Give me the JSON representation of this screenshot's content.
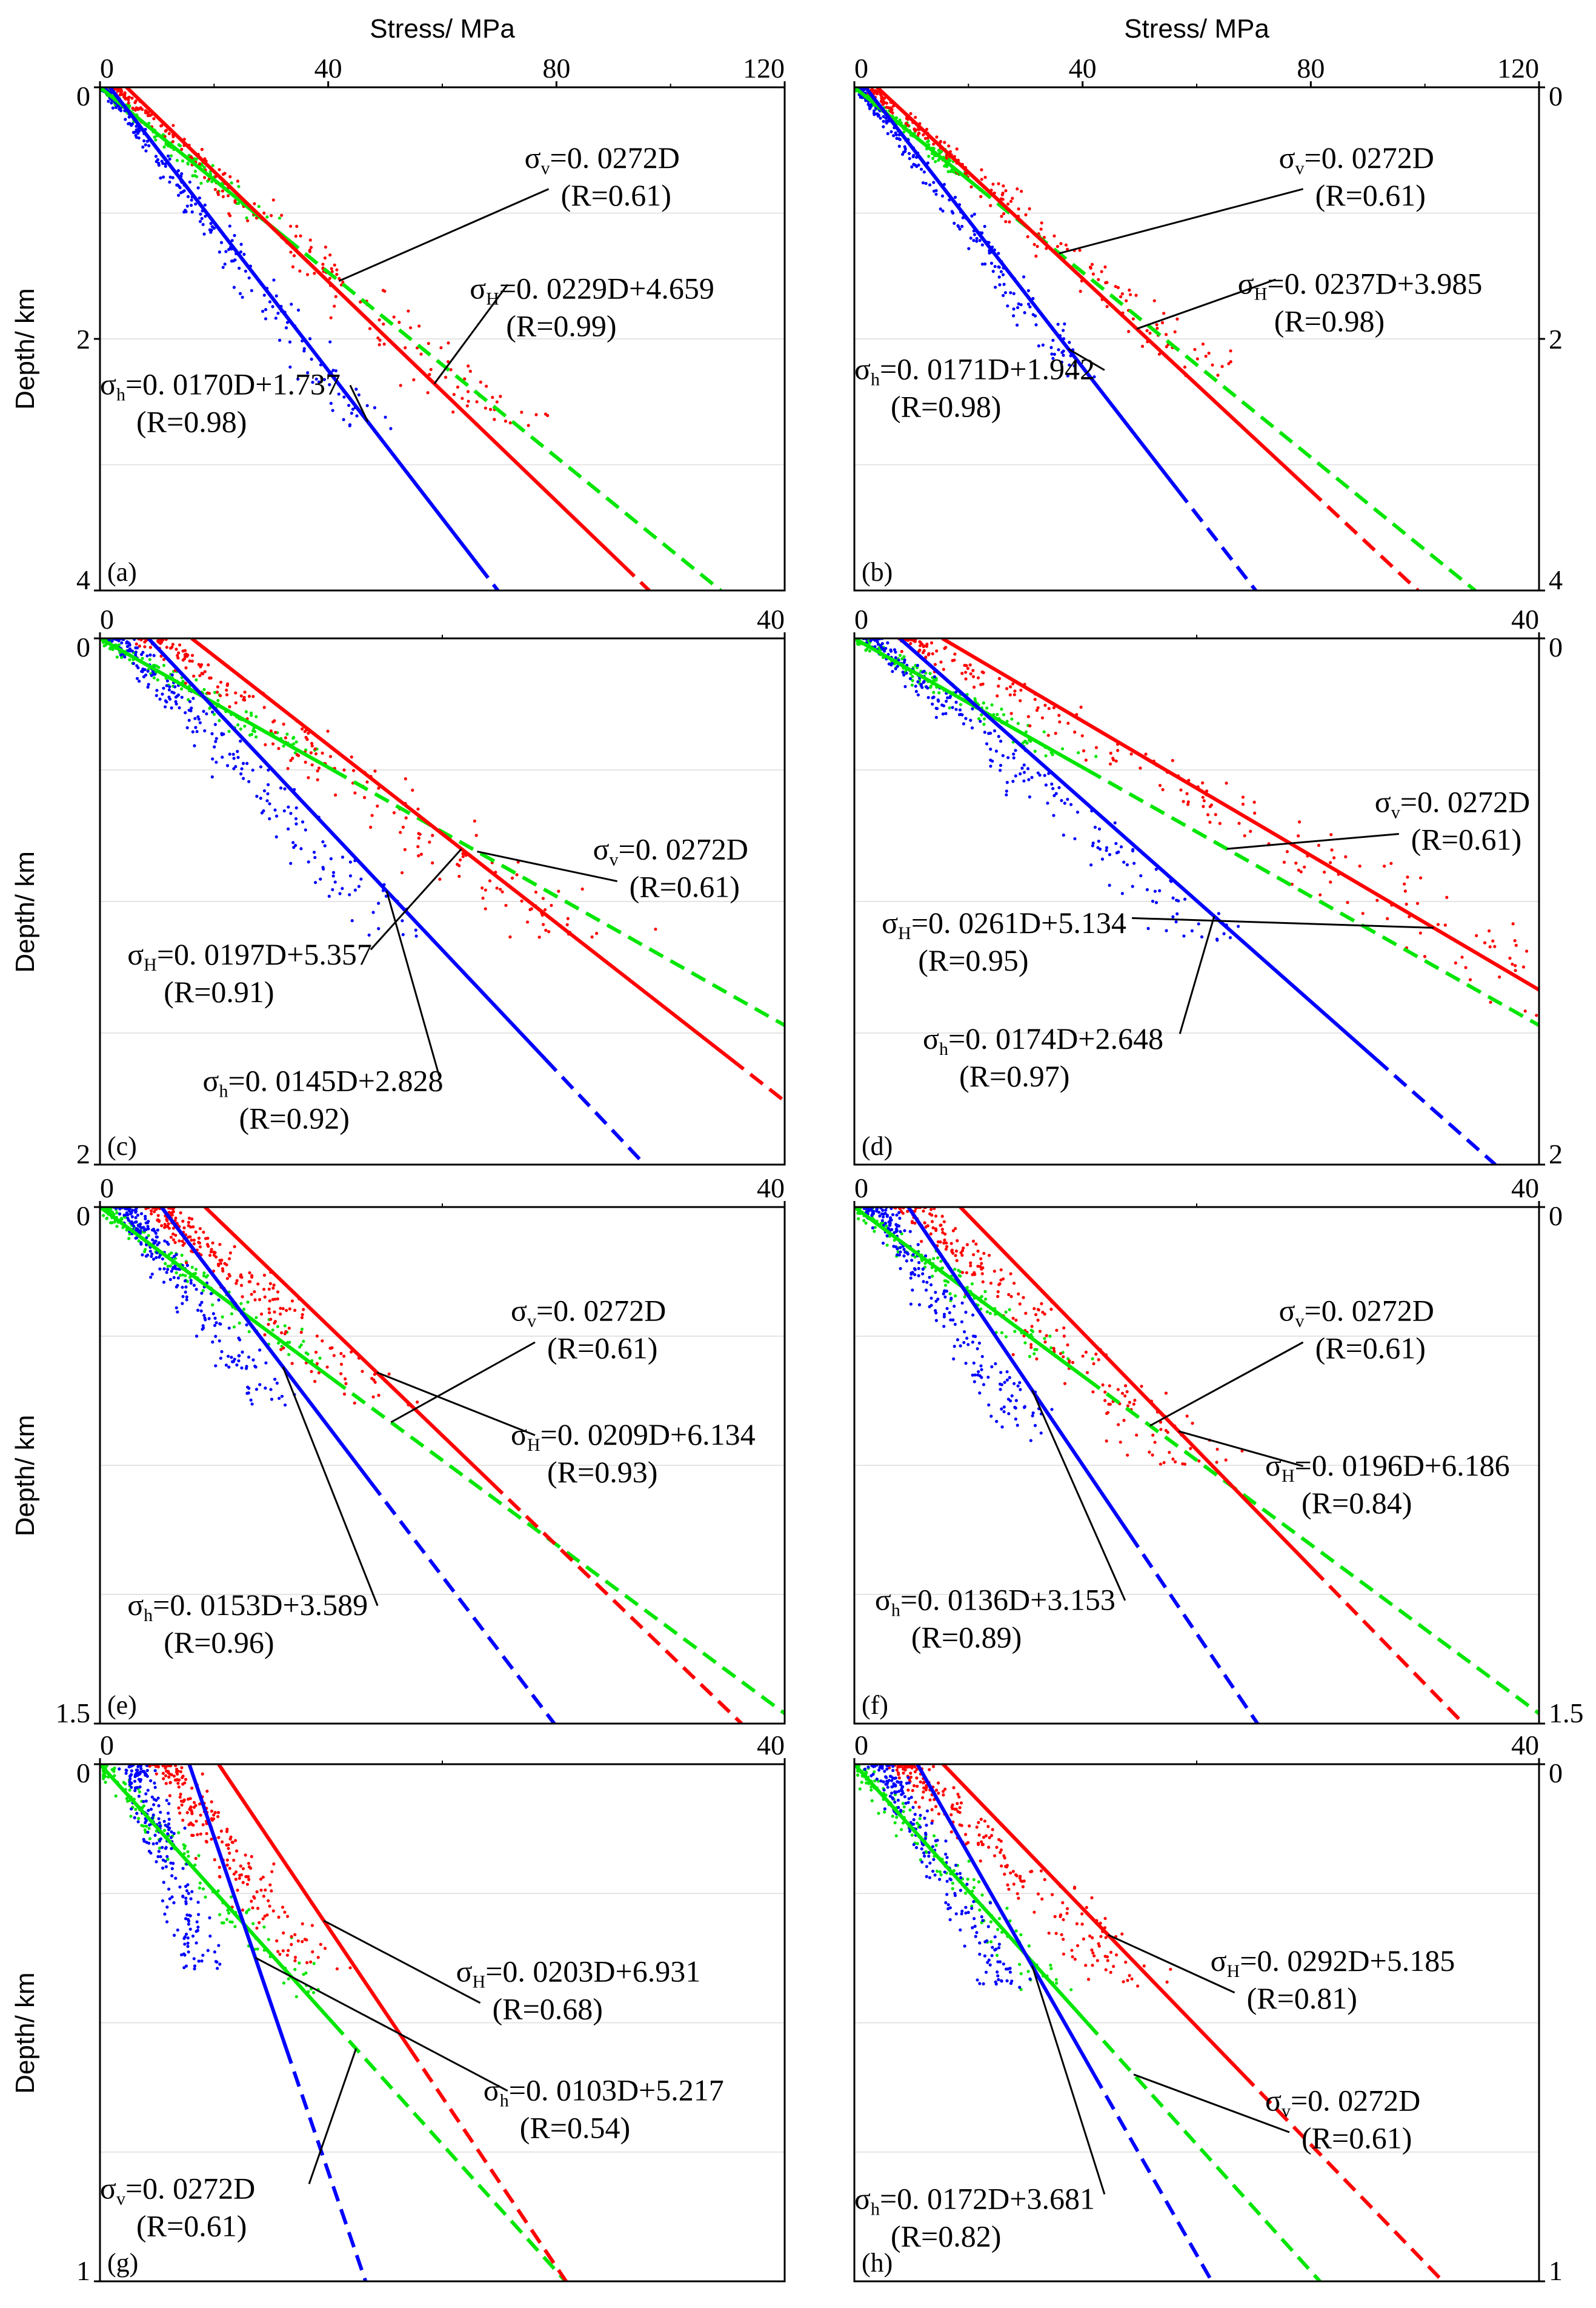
{
  "figure": {
    "x_title": "Stress/ MPa",
    "y_title": "Depth/ km",
    "colors": {
      "vertical": "#00e600",
      "max_horizontal": "#ff0000",
      "min_horizontal": "#0000ff",
      "frame": "#000000"
    }
  },
  "chart_data": [
    {
      "label": "(a)",
      "type": "scatter+line",
      "xlim": [
        0,
        120
      ],
      "xticks": [
        "0",
        "40",
        "80",
        "120"
      ],
      "ylim": [
        0,
        4
      ],
      "yticks": [
        "0",
        "2",
        "4"
      ],
      "ytick_side": "left",
      "show_x_title": true,
      "show_y_title": true,
      "series": [
        {
          "name": "σv",
          "color": "green",
          "slope": 27.2,
          "intercept": 0,
          "solid_to": 1.2,
          "eq": {
            "sym": "σ",
            "sub": "v",
            "expr": "=0. 0272D"
          },
          "r": "(R=0.61)"
        },
        {
          "name": "σH",
          "color": "red",
          "slope": 22.9,
          "intercept": 4.659,
          "solid_to": 3.8,
          "eq": {
            "sym": "σ",
            "sub": "H",
            "expr": "=0. 0229D+4.659"
          },
          "r": "(R=0.99)"
        },
        {
          "name": "σh",
          "color": "blue",
          "slope": 17.0,
          "intercept": 1.737,
          "solid_to": 3.8,
          "eq": {
            "sym": "σ",
            "sub": "h",
            "expr": "=0. 0170D+1.737"
          },
          "r": "(R=0.98)"
        }
      ]
    },
    {
      "label": "(b)",
      "type": "scatter+line",
      "xlim": [
        0,
        120
      ],
      "xticks": [
        "0",
        "40",
        "80",
        "120"
      ],
      "ylim": [
        0,
        4
      ],
      "yticks": [
        "0",
        "2",
        "4"
      ],
      "ytick_side": "right",
      "show_x_title": true,
      "show_y_title": false,
      "series": [
        {
          "name": "σv",
          "color": "green",
          "slope": 27.2,
          "intercept": 0,
          "solid_to": 0.8,
          "eq": {
            "sym": "σ",
            "sub": "v",
            "expr": "=0. 0272D"
          },
          "r": "(R=0.61)"
        },
        {
          "name": "σH",
          "color": "red",
          "slope": 23.7,
          "intercept": 3.985,
          "solid_to": 3.2,
          "eq": {
            "sym": "σ",
            "sub": "H",
            "expr": "=0. 0237D+3.985"
          },
          "r": "(R=0.98)"
        },
        {
          "name": "σh",
          "color": "blue",
          "slope": 17.1,
          "intercept": 1.942,
          "solid_to": 3.2,
          "eq": {
            "sym": "σ",
            "sub": "h",
            "expr": "=0. 0171D+1.942"
          },
          "r": "(R=0.98)"
        }
      ]
    },
    {
      "label": "(c)",
      "type": "scatter+line",
      "xlim": [
        0,
        40
      ],
      "xticks": [
        "0",
        "40"
      ],
      "ylim": [
        0,
        2
      ],
      "yticks": [
        "0",
        "2"
      ],
      "ytick_side": "left",
      "show_x_title": false,
      "show_y_title": true,
      "series": [
        {
          "name": "σv",
          "color": "green",
          "slope": 27.2,
          "intercept": 0,
          "solid_to": 0.5,
          "eq": {
            "sym": "σ",
            "sub": "v",
            "expr": "=0. 0272D"
          },
          "r": "(R=0.61)"
        },
        {
          "name": "σH",
          "color": "red",
          "slope": 19.7,
          "intercept": 5.357,
          "solid_to": 1.6,
          "eq": {
            "sym": "σ",
            "sub": "H",
            "expr": "=0. 0197D+5.357"
          },
          "r": "(R=0.91)"
        },
        {
          "name": "σh",
          "color": "blue",
          "slope": 14.5,
          "intercept": 2.828,
          "solid_to": 1.6,
          "eq": {
            "sym": "σ",
            "sub": "h",
            "expr": "=0. 0145D+2.828"
          },
          "r": "(R=0.92)"
        }
      ]
    },
    {
      "label": "(d)",
      "type": "scatter+line",
      "xlim": [
        0,
        40
      ],
      "xticks": [
        "0",
        "40"
      ],
      "ylim": [
        0,
        2
      ],
      "yticks": [
        "0",
        "2"
      ],
      "ytick_side": "right",
      "show_x_title": false,
      "show_y_title": false,
      "series": [
        {
          "name": "σv",
          "color": "green",
          "slope": 27.2,
          "intercept": 0,
          "solid_to": 0.5,
          "eq": {
            "sym": "σ",
            "sub": "v",
            "expr": "=0. 0272D"
          },
          "r": "(R=0.61)"
        },
        {
          "name": "σH",
          "color": "red",
          "slope": 26.1,
          "intercept": 5.134,
          "solid_to": 2.0,
          "eq": {
            "sym": "σ",
            "sub": "H",
            "expr": "=0. 0261D+5.134"
          },
          "r": "(R=0.95)"
        },
        {
          "name": "σh",
          "color": "blue",
          "slope": 17.4,
          "intercept": 2.648,
          "solid_to": 1.6,
          "eq": {
            "sym": "σ",
            "sub": "h",
            "expr": "=0. 0174D+2.648"
          },
          "r": "(R=0.97)"
        }
      ]
    },
    {
      "label": "(e)",
      "type": "scatter+line",
      "xlim": [
        0,
        40
      ],
      "xticks": [
        "0",
        "40"
      ],
      "ylim": [
        0,
        1.5
      ],
      "yticks": [
        "0",
        "1.5"
      ],
      "ytick_side": "left",
      "show_x_title": false,
      "show_y_title": true,
      "series": [
        {
          "name": "σv",
          "color": "green",
          "slope": 27.2,
          "intercept": 0,
          "solid_to": 0.5,
          "eq": {
            "sym": "σ",
            "sub": "v",
            "expr": "=0. 0272D"
          },
          "r": "(R=0.61)"
        },
        {
          "name": "σH",
          "color": "red",
          "slope": 20.9,
          "intercept": 6.134,
          "solid_to": 0.8,
          "eq": {
            "sym": "σ",
            "sub": "H",
            "expr": "=0. 0209D+6.134"
          },
          "r": "(R=0.93)"
        },
        {
          "name": "σh",
          "color": "blue",
          "slope": 15.3,
          "intercept": 3.589,
          "solid_to": 0.8,
          "eq": {
            "sym": "σ",
            "sub": "h",
            "expr": "=0. 0153D+3.589"
          },
          "r": "(R=0.96)"
        }
      ]
    },
    {
      "label": "(f)",
      "type": "scatter+line",
      "xlim": [
        0,
        40
      ],
      "xticks": [
        "0",
        "40"
      ],
      "ylim": [
        0,
        1.5
      ],
      "yticks": [
        "0",
        "1.5"
      ],
      "ytick_side": "right",
      "show_x_title": false,
      "show_y_title": false,
      "series": [
        {
          "name": "σv",
          "color": "green",
          "slope": 27.2,
          "intercept": 0,
          "solid_to": 0.5,
          "eq": {
            "sym": "σ",
            "sub": "v",
            "expr": "=0. 0272D"
          },
          "r": "(R=0.61)"
        },
        {
          "name": "σH",
          "color": "red",
          "slope": 19.6,
          "intercept": 6.186,
          "solid_to": 1.05,
          "eq": {
            "sym": "σ",
            "sub": "H",
            "expr": "=0. 0196D+6.186"
          },
          "r": "(R=0.84)"
        },
        {
          "name": "σh",
          "color": "blue",
          "slope": 13.6,
          "intercept": 3.153,
          "solid_to": 0.95,
          "eq": {
            "sym": "σ",
            "sub": "h",
            "expr": "=0. 0136D+3.153"
          },
          "r": "(R=0.89)"
        }
      ]
    },
    {
      "label": "(g)",
      "type": "scatter+line",
      "xlim": [
        0,
        40
      ],
      "xticks": [
        "0",
        "40"
      ],
      "ylim": [
        0,
        1
      ],
      "yticks": [
        "0",
        "1"
      ],
      "ytick_side": "left",
      "show_x_title": false,
      "show_y_title": true,
      "series": [
        {
          "name": "σv",
          "color": "green",
          "slope": 27.2,
          "intercept": 0,
          "solid_to": 0.5,
          "eq": {
            "sym": "σ",
            "sub": "v",
            "expr": "=0. 0272D"
          },
          "r": "(R=0.61)"
        },
        {
          "name": "σH",
          "color": "red",
          "slope": 20.3,
          "intercept": 6.931,
          "solid_to": 0.55,
          "eq": {
            "sym": "σ",
            "sub": "H",
            "expr": "=0. 0203D+6.931"
          },
          "r": "(R=0.68)"
        },
        {
          "name": "σh",
          "color": "blue",
          "slope": 10.3,
          "intercept": 5.217,
          "solid_to": 0.55,
          "eq": {
            "sym": "σ",
            "sub": "h",
            "expr": "=0. 0103D+5.217"
          },
          "r": "(R=0.54)"
        }
      ]
    },
    {
      "label": "(h)",
      "type": "scatter+line",
      "xlim": [
        0,
        40
      ],
      "xticks": [
        "0",
        "40"
      ],
      "ylim": [
        0,
        1
      ],
      "yticks": [
        "0",
        "1"
      ],
      "ytick_side": "right",
      "show_x_title": false,
      "show_y_title": false,
      "series": [
        {
          "name": "σv",
          "color": "green",
          "slope": 27.2,
          "intercept": 0,
          "solid_to": 0.5,
          "eq": {
            "sym": "σ",
            "sub": "v",
            "expr": "=0. 0272D"
          },
          "r": "(R=0.61)"
        },
        {
          "name": "σH",
          "color": "red",
          "slope": 29.2,
          "intercept": 5.185,
          "solid_to": 0.6,
          "eq": {
            "sym": "σ",
            "sub": "H",
            "expr": "=0. 0292D+5.185"
          },
          "r": "(R=0.81)"
        },
        {
          "name": "σh",
          "color": "blue",
          "slope": 17.2,
          "intercept": 3.681,
          "solid_to": 0.6,
          "eq": {
            "sym": "σ",
            "sub": "h",
            "expr": "=0. 0172D+3.681"
          },
          "r": "(R=0.82)"
        }
      ]
    }
  ]
}
